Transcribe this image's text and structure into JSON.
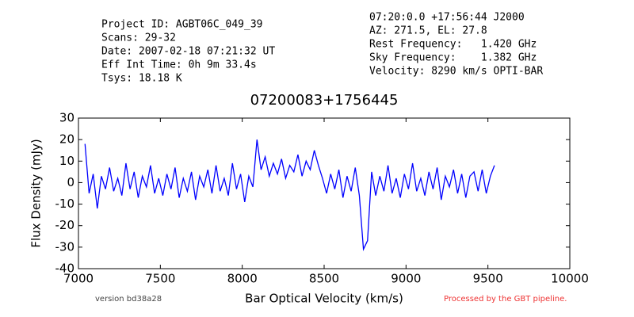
{
  "chart_data": {
    "type": "line",
    "title": "07200083+1756445",
    "info_left": [
      "Project ID: AGBT06C_049_39",
      "Scans: 29-32",
      "Date: 2007-02-18 07:21:32 UT",
      "Eff Int Time: 0h 9m 33.4s",
      "Tsys: 18.18 K"
    ],
    "info_right": [
      "07:20:0.0 +17:56:44 J2000",
      "AZ: 271.5, EL: 27.8",
      "Rest Frequency:   1.420 GHz",
      "Sky Frequency:    1.382 GHz",
      "Velocity: 8290 km/s OPTI-BAR"
    ],
    "x_label": "Bar Optical Velocity (km/s)",
    "y_label": "Flux Density (mJy)",
    "footer_left": "version bd38a28",
    "footer_right": "Processed by the GBT pipeline.",
    "color": "#0000ff",
    "x": [
      7040,
      7065,
      7090,
      7115,
      7140,
      7165,
      7190,
      7215,
      7240,
      7265,
      7290,
      7315,
      7340,
      7365,
      7390,
      7415,
      7440,
      7465,
      7490,
      7515,
      7540,
      7565,
      7590,
      7615,
      7640,
      7665,
      7690,
      7715,
      7740,
      7765,
      7790,
      7815,
      7840,
      7865,
      7890,
      7915,
      7940,
      7965,
      7990,
      8015,
      8040,
      8065,
      8090,
      8115,
      8140,
      8165,
      8190,
      8215,
      8240,
      8265,
      8290,
      8315,
      8340,
      8365,
      8390,
      8415,
      8440,
      8465,
      8490,
      8515,
      8540,
      8565,
      8590,
      8615,
      8640,
      8665,
      8690,
      8715,
      8740,
      8765,
      8790,
      8815,
      8840,
      8865,
      8890,
      8915,
      8940,
      8965,
      8990,
      9015,
      9040,
      9065,
      9090,
      9115,
      9140,
      9165,
      9190,
      9215,
      9240,
      9265,
      9290,
      9315,
      9340,
      9365,
      9390,
      9415,
      9440,
      9465,
      9490,
      9515,
      9540
    ],
    "values": [
      18,
      -5,
      4,
      -12,
      3,
      -3,
      7,
      -4,
      2,
      -6,
      9,
      -3,
      5,
      -7,
      3,
      -2,
      8,
      -5,
      2,
      -6,
      4,
      -3,
      7,
      -7,
      2,
      -4,
      5,
      -8,
      3,
      -2,
      6,
      -5,
      8,
      -4,
      2,
      -6,
      9,
      -3,
      4,
      -9,
      3,
      -2,
      20,
      6,
      12,
      3,
      9,
      4,
      11,
      2,
      8,
      5,
      13,
      3,
      10,
      6,
      15,
      8,
      2,
      -5,
      4,
      -3,
      6,
      -7,
      3,
      -4,
      7,
      -6,
      -31,
      -27,
      5,
      -6,
      3,
      -4,
      8,
      -5,
      2,
      -7,
      4,
      -3,
      9,
      -4,
      2,
      -6,
      5,
      -3,
      7,
      -8,
      3,
      -2,
      6,
      -5,
      4,
      -7,
      3,
      5,
      -4,
      6,
      -5,
      3,
      8
    ],
    "xlim": [
      7000,
      10000
    ],
    "xticks": [
      7000,
      7500,
      8000,
      8500,
      9000,
      9500,
      10000
    ],
    "ylim": [
      -40,
      30
    ],
    "yticks": [
      -40,
      -30,
      -20,
      -10,
      0,
      10,
      20,
      30
    ]
  }
}
